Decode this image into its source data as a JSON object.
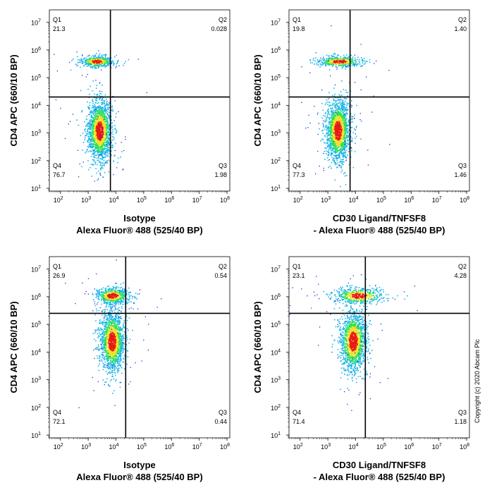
{
  "copyright": "Copyright (c) 2020 Abcam Plc",
  "chart_data": [
    {
      "type": "scatter",
      "panel": "top-left",
      "xlabel": [
        "Isotype",
        "Alexa Fluor® 488  (525/40 BP)"
      ],
      "ylabel": "CD4 APC (660/10 BP)",
      "xlim_log10": [
        1.6,
        8.1
      ],
      "ylim_log10": [
        0.9,
        7.45
      ],
      "x_scale": "log",
      "y_scale": "log",
      "x_ticks": [
        2,
        3,
        4,
        5,
        6,
        7,
        8
      ],
      "y_ticks": [
        1,
        2,
        3,
        4,
        5,
        6,
        7
      ],
      "gate": {
        "x_log10": 3.8,
        "y_log10": 4.3
      },
      "quadrants": [
        {
          "label": "Q1",
          "value": "21.3"
        },
        {
          "label": "Q2",
          "value": "0.028"
        },
        {
          "label": "Q3",
          "value": "1.98"
        },
        {
          "label": "Q4",
          "value": "76.7"
        }
      ],
      "populations": [
        {
          "x_log10": 3.4,
          "y_log10": 3.1,
          "sx": 0.22,
          "sy": 0.55,
          "weight": 0.767
        },
        {
          "x_log10": 3.3,
          "y_log10": 5.6,
          "sx": 0.3,
          "sy": 0.1,
          "weight": 0.213
        }
      ]
    },
    {
      "type": "scatter",
      "panel": "top-right",
      "xlabel": [
        "CD30 Ligand/TNFSF8",
        "- Alexa Fluor® 488  (525/40 BP)"
      ],
      "ylabel": "CD4 APC (660/10 BP)",
      "xlim_log10": [
        1.6,
        8.1
      ],
      "ylim_log10": [
        0.9,
        7.45
      ],
      "x_scale": "log",
      "y_scale": "log",
      "x_ticks": [
        2,
        3,
        4,
        5,
        6,
        7,
        8
      ],
      "y_ticks": [
        1,
        2,
        3,
        4,
        5,
        6,
        7
      ],
      "gate": {
        "x_log10": 3.8,
        "y_log10": 4.3
      },
      "quadrants": [
        {
          "label": "Q1",
          "value": "19.8"
        },
        {
          "label": "Q2",
          "value": "1.40"
        },
        {
          "label": "Q3",
          "value": "1.46"
        },
        {
          "label": "Q4",
          "value": "77.3"
        }
      ],
      "populations": [
        {
          "x_log10": 3.35,
          "y_log10": 3.1,
          "sx": 0.22,
          "sy": 0.55,
          "weight": 0.773
        },
        {
          "x_log10": 3.4,
          "y_log10": 5.6,
          "sx": 0.4,
          "sy": 0.1,
          "weight": 0.198
        }
      ]
    },
    {
      "type": "scatter",
      "panel": "bottom-left",
      "xlabel": [
        "Isotype",
        "Alexa Fluor® 488  (525/40 BP)"
      ],
      "ylabel": "CD4 APC (660/10 BP)",
      "xlim_log10": [
        1.6,
        8.1
      ],
      "ylim_log10": [
        0.9,
        7.45
      ],
      "x_scale": "log",
      "y_scale": "log",
      "x_ticks": [
        2,
        3,
        4,
        5,
        6,
        7,
        8
      ],
      "y_ticks": [
        1,
        2,
        3,
        4,
        5,
        6,
        7
      ],
      "gate": {
        "x_log10": 4.35,
        "y_log10": 5.4
      },
      "quadrants": [
        {
          "label": "Q1",
          "value": "26.9"
        },
        {
          "label": "Q2",
          "value": "0.54"
        },
        {
          "label": "Q3",
          "value": "0.44"
        },
        {
          "label": "Q4",
          "value": "72.1"
        }
      ],
      "populations": [
        {
          "x_log10": 3.85,
          "y_log10": 4.4,
          "sx": 0.22,
          "sy": 0.55,
          "weight": 0.721
        },
        {
          "x_log10": 3.85,
          "y_log10": 6.05,
          "sx": 0.3,
          "sy": 0.15,
          "weight": 0.269
        }
      ]
    },
    {
      "type": "scatter",
      "panel": "bottom-right",
      "xlabel": [
        "CD30 Ligand/TNFSF8",
        "- Alexa Fluor® 488  (525/40 BP)"
      ],
      "ylabel": "CD4 APC (660/10 BP)",
      "xlim_log10": [
        1.6,
        8.1
      ],
      "ylim_log10": [
        0.9,
        7.45
      ],
      "x_scale": "log",
      "y_scale": "log",
      "x_ticks": [
        2,
        3,
        4,
        5,
        6,
        7,
        8
      ],
      "y_ticks": [
        1,
        2,
        3,
        4,
        5,
        6,
        7
      ],
      "gate": {
        "x_log10": 4.35,
        "y_log10": 5.4
      },
      "quadrants": [
        {
          "label": "Q1",
          "value": "23.1"
        },
        {
          "label": "Q2",
          "value": "4.28"
        },
        {
          "label": "Q3",
          "value": "1.18"
        },
        {
          "label": "Q4",
          "value": "71.4"
        }
      ],
      "populations": [
        {
          "x_log10": 3.9,
          "y_log10": 4.4,
          "sx": 0.24,
          "sy": 0.55,
          "weight": 0.714
        },
        {
          "x_log10": 4.1,
          "y_log10": 6.05,
          "sx": 0.45,
          "sy": 0.15,
          "weight": 0.231
        }
      ]
    }
  ]
}
